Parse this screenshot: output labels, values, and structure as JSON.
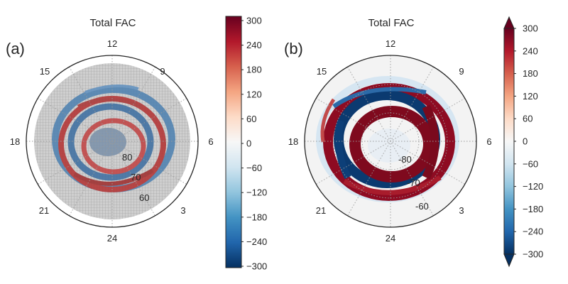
{
  "chart_data": [
    {
      "type": "heatmap",
      "panel_label": "(a)",
      "title": "Total FAC",
      "projection": "polar (magnetic local time vs latitude)",
      "angular_labels": [
        "12",
        "9",
        "6",
        "3",
        "24",
        "21",
        "18",
        "15"
      ],
      "radial_labels": [
        "80",
        "70",
        "60"
      ],
      "colorbar": {
        "min": -300,
        "max": 300,
        "ticks": [
          "300",
          "240",
          "180",
          "120",
          "60",
          "0",
          "−60",
          "−120",
          "−180",
          "−240",
          "−300"
        ],
        "extend": "neither",
        "colormap": "RdBu_r"
      },
      "grid_overlay": true
    },
    {
      "type": "heatmap",
      "panel_label": "(b)",
      "title": "Total FAC",
      "projection": "polar (magnetic local time vs latitude)",
      "angular_labels": [
        "12",
        "9",
        "6",
        "3",
        "24",
        "21",
        "18",
        "15"
      ],
      "radial_labels": [
        "-80",
        "-70",
        "-60"
      ],
      "colorbar": {
        "min": -300,
        "max": 300,
        "ticks": [
          "300",
          "240",
          "180",
          "120",
          "60",
          "0",
          "−60",
          "−120",
          "−180",
          "−240",
          "−300"
        ],
        "extend": "both",
        "colormap": "RdBu_r"
      },
      "grid_overlay": false
    }
  ]
}
